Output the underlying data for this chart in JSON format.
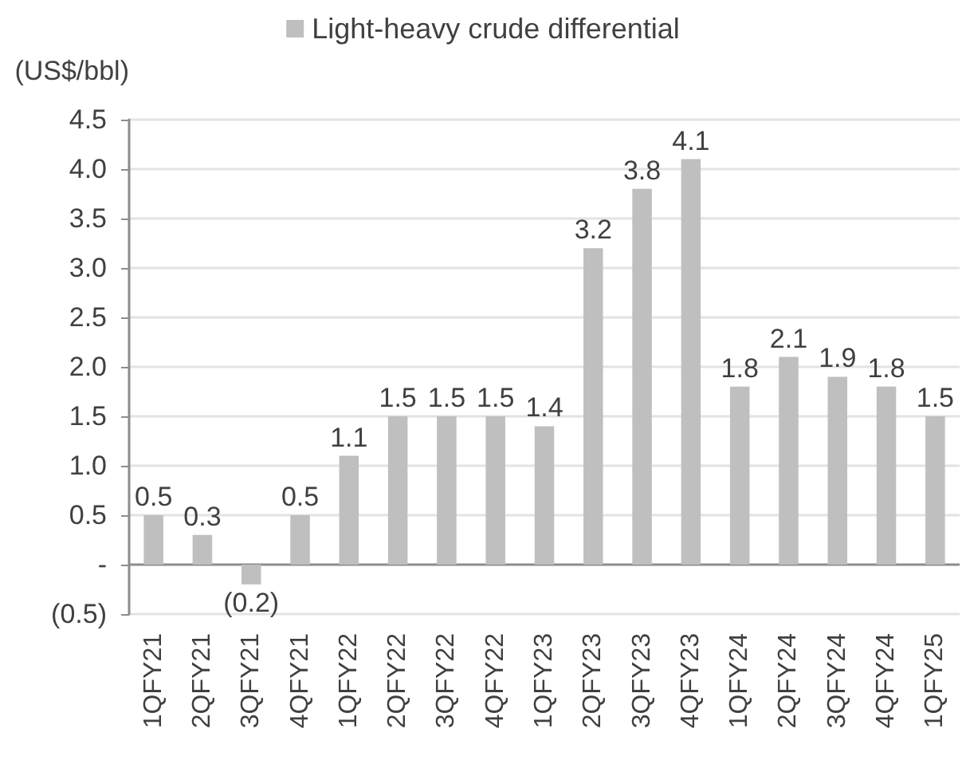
{
  "chart_data": {
    "type": "bar",
    "ylabel": "(US$/bbl)",
    "categories": [
      "1QFY21",
      "2QFY21",
      "3QFY21",
      "4QFY21",
      "1QFY22",
      "2QFY22",
      "3QFY22",
      "4QFY22",
      "1QFY23",
      "2QFY23",
      "3QFY23",
      "4QFY23",
      "1QFY24",
      "2QFY24",
      "3QFY24",
      "4QFY24",
      "1QFY25"
    ],
    "series": [
      {
        "name": "Light-heavy crude differential",
        "color": "#bfbfbf",
        "values": [
          0.5,
          0.3,
          -0.2,
          0.5,
          1.1,
          1.5,
          1.5,
          1.5,
          1.4,
          3.2,
          3.8,
          4.1,
          1.8,
          2.1,
          1.9,
          1.8,
          1.5
        ],
        "value_labels": [
          "0.5",
          "0.3",
          "(0.2)",
          "0.5",
          "1.1",
          "1.5",
          "1.5",
          "1.5",
          "1.4",
          "3.2",
          "3.8",
          "4.1",
          "1.8",
          "2.1",
          "1.9",
          "1.8",
          "1.5"
        ]
      }
    ],
    "ylim": [
      -0.5,
      4.5
    ],
    "yticks": [
      {
        "value": -0.5,
        "label": "(0.5)"
      },
      {
        "value": 0,
        "label": "-"
      },
      0.5,
      {
        "value": 1,
        "label": "1.0"
      },
      1.5,
      {
        "value": 2,
        "label": "2.0"
      },
      2.5,
      {
        "value": 3,
        "label": "3.0"
      },
      3.5,
      {
        "value": 4,
        "label": "4.0"
      },
      4.5
    ],
    "grid": "y",
    "legend": "top"
  }
}
